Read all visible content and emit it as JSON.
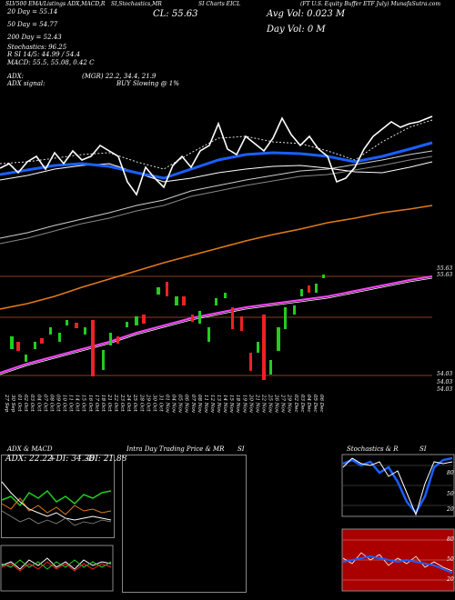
{
  "header": {
    "top_left": "SLV500 EMA/Listings ADX,MACD,R",
    "top_mid": "SI,Stochastics,MR",
    "top_mid2": "SI Charts EICL",
    "top_right": "(FT U.S. Equity Buffer ETF July) MunafaSutra.com",
    "cl": "CL: 55.63",
    "avg_vol": "Avg Vol: 0.023 M",
    "day_vol": "Day Vol: 0   M",
    "ema20": "20  Day = 55.14",
    "ema50": "50  Day = 54.77",
    "ema200": "200  Day = 52.43",
    "stoch": "Stochastics: 96.25",
    "rsi": "R   SI 14/5: 44.99 / 54.4",
    "macd": "MACD: 55.5, 55.08, 0.42  C",
    "adx": "ADX:",
    "adx_vals": "(MGR) 22.2, 34.4, 21.9",
    "adx_signal": "ADX  signal:",
    "buy": "BUY Slowing @ 1%"
  },
  "price_labels": {
    "top1": "55.63",
    "top2": "55.63",
    "bot1": "54.03",
    "bot2": "54.03",
    "bot3": "54.03"
  },
  "colors": {
    "bg": "#000000",
    "price_line": "#ffffff",
    "ema20": "#1a5fff",
    "ema50": "#ffffff",
    "ema200": "#e07a1a",
    "bb": "#ff44ff",
    "up": "#22cc22",
    "down": "#ee2222",
    "sr": "#b8562a"
  },
  "chart_data": {
    "type": "line",
    "x": [
      "27 Sep",
      "30 Sep",
      "01 Oct",
      "02 Oct",
      "03 Oct",
      "04 Oct",
      "07 Oct",
      "08 Oct",
      "09 Oct",
      "10 Oct",
      "11 Oct",
      "14 Oct",
      "15 Oct",
      "16 Oct",
      "17 Oct",
      "18 Oct",
      "21 Oct",
      "22 Oct",
      "23 Oct",
      "24 Oct",
      "25 Oct",
      "28 Oct",
      "29 Oct",
      "30 Oct",
      "31 Oct",
      "01 Nov",
      "04 Nov",
      "05 Nov",
      "06 Nov",
      "07 Nov",
      "08 Nov",
      "11 Nov",
      "12 Nov",
      "13 Nov",
      "14 Nov",
      "15 Nov",
      "18 Nov",
      "19 Nov",
      "20 Nov",
      "21 Nov",
      "22 Nov",
      "25 Nov",
      "26 Nov",
      "27 Nov",
      "29 Nov",
      "02 Dec",
      "03 Dec",
      "04 Dec",
      "05 Dec",
      "06 Dec"
    ],
    "series": []
  },
  "panels": {
    "adx": {
      "title": "ADX  & MACD",
      "adx_text": "ADX: 22.22",
      "plus_di": "+DI: 34.38",
      "minus_di": "-DI: 21.88"
    },
    "intraday": {
      "title": "Intra  Day Trading Price  & MR",
      "si": "SI"
    },
    "stoch": {
      "title": "Stochastics  & R",
      "si": "SI",
      "ticks": [
        "80",
        "50",
        "20"
      ],
      "ticks2": [
        "80",
        "50",
        "20"
      ]
    }
  }
}
